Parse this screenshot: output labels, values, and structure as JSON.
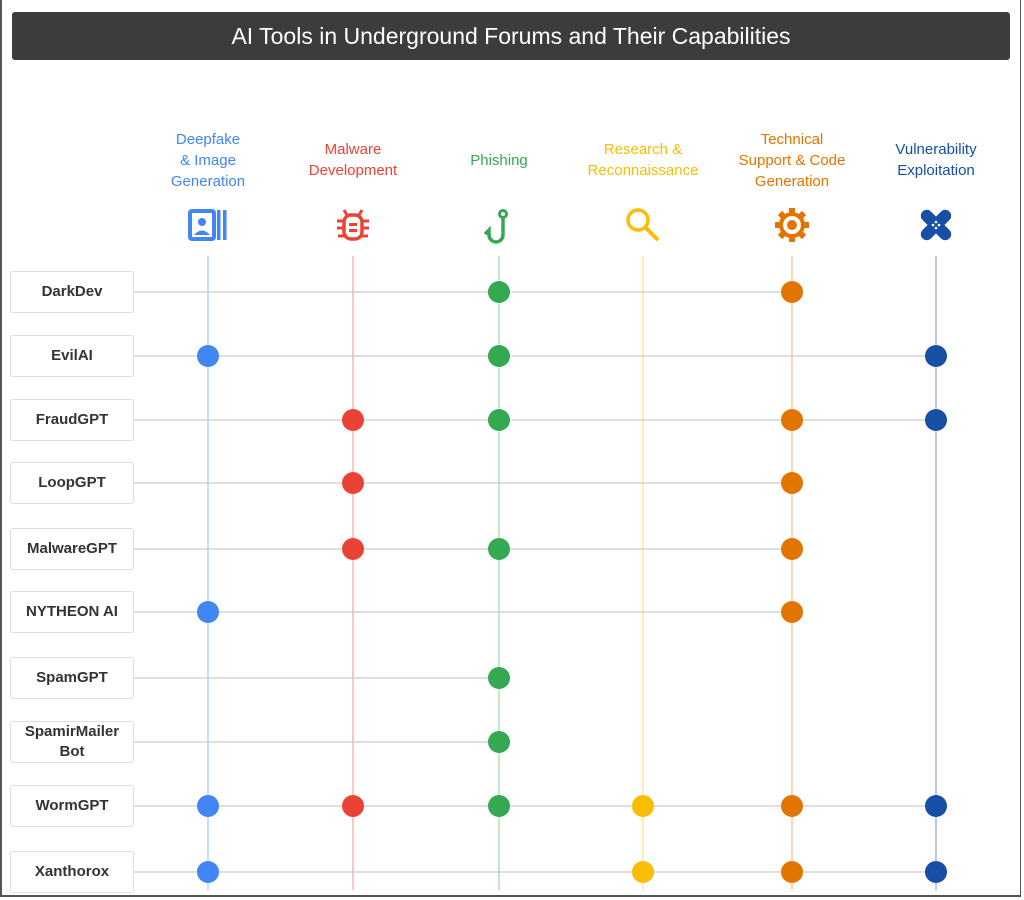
{
  "title": "AI Tools in Underground Forums and Their Capabilities",
  "chart_data": {
    "type": "table",
    "columns": [
      {
        "label": "Deepfake\n& Image\nGeneration",
        "icon": "portrait-icon",
        "color": "#4285f4"
      },
      {
        "label": "Malware\nDevelopment",
        "icon": "bug-icon",
        "color": "#ea4335"
      },
      {
        "label": "Phishing",
        "icon": "fishhook-icon",
        "color": "#34a853"
      },
      {
        "label": "Research &\nReconnaissance",
        "icon": "search-icon",
        "color": "#fbbc04"
      },
      {
        "label": "Technical\nSupport & Code\nGeneration",
        "icon": "gear-icon",
        "color": "#e37400"
      },
      {
        "label": "Vulnerability\nExploitation",
        "icon": "bandage-icon",
        "color": "#174ea6"
      }
    ],
    "rows": [
      {
        "name": "DarkDev",
        "capabilities": [
          0,
          0,
          1,
          0,
          1,
          0
        ]
      },
      {
        "name": "EvilAI",
        "capabilities": [
          1,
          0,
          1,
          0,
          0,
          1
        ]
      },
      {
        "name": "FraudGPT",
        "capabilities": [
          0,
          1,
          1,
          0,
          1,
          1
        ]
      },
      {
        "name": "LoopGPT",
        "capabilities": [
          0,
          1,
          0,
          0,
          1,
          0
        ]
      },
      {
        "name": "MalwareGPT",
        "capabilities": [
          0,
          1,
          1,
          0,
          1,
          0
        ]
      },
      {
        "name": "NYTHEON AI",
        "capabilities": [
          1,
          0,
          0,
          0,
          1,
          0
        ]
      },
      {
        "name": "SpamGPT",
        "capabilities": [
          0,
          0,
          1,
          0,
          0,
          0
        ]
      },
      {
        "name": "SpamirMailer\nBot",
        "capabilities": [
          0,
          0,
          1,
          0,
          0,
          0
        ]
      },
      {
        "name": "WormGPT",
        "capabilities": [
          1,
          1,
          1,
          1,
          1,
          1
        ]
      },
      {
        "name": "Xanthorox",
        "capabilities": [
          1,
          0,
          0,
          1,
          1,
          1
        ]
      }
    ]
  }
}
